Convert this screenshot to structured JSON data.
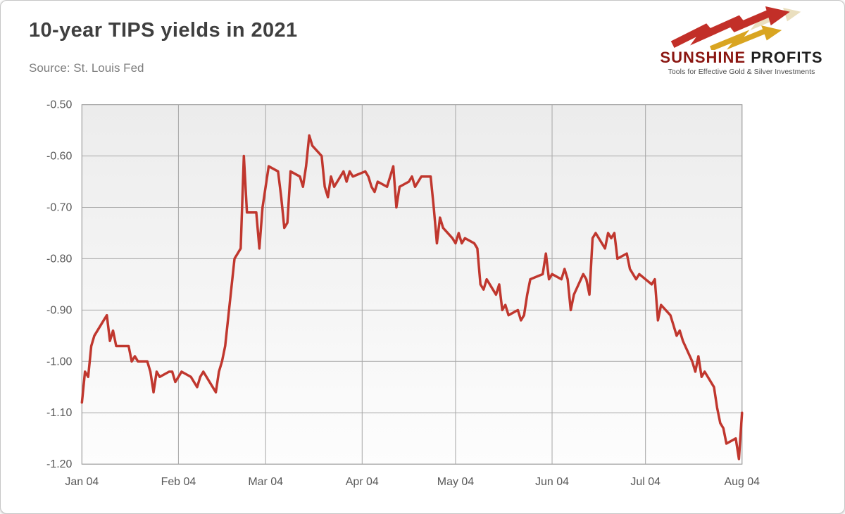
{
  "card": {
    "title": "10-year TIPS yields in 2021",
    "source": "Source: St. Louis Fed"
  },
  "logo": {
    "name_primary": "SUNSHINE",
    "name_secondary": "PROFITS",
    "tagline": "Tools for Effective Gold & Silver Investments",
    "colors": {
      "primary": "#8B1712",
      "secondary": "#1F1F1F",
      "arrow_red": "#C22F28",
      "arrow_gold": "#D9A521",
      "arrow_pale": "#EADFBF"
    }
  },
  "chart_data": {
    "type": "line",
    "title": "10-year TIPS yields in 2021",
    "series_name": "10-year TIPS yield (%)",
    "line_color": "#C0372E",
    "grid_color": "#A6A6A6",
    "grid": true,
    "legend": "none",
    "xlabel": "",
    "ylabel": "",
    "ylim": [
      -1.2,
      -0.5
    ],
    "x_range": [
      "2021-01-04",
      "2021-08-04"
    ],
    "y_ticks": [
      -0.5,
      -0.6,
      -0.7,
      -0.8,
      -0.9,
      -1.0,
      -1.1,
      -1.2
    ],
    "y_tick_labels": [
      "-0.50",
      "-0.60",
      "-0.70",
      "-0.80",
      "-0.90",
      "-1.00",
      "-1.10",
      "-1.20"
    ],
    "x_tick_dates": [
      "2021-01-04",
      "2021-02-04",
      "2021-03-04",
      "2021-04-04",
      "2021-05-04",
      "2021-06-04",
      "2021-07-04",
      "2021-08-04"
    ],
    "x_tick_labels": [
      "Jan 04",
      "Feb 04",
      "Mar 04",
      "Apr 04",
      "May 04",
      "Jun 04",
      "Jul 04",
      "Aug 04"
    ],
    "points": [
      [
        "2021-01-04",
        -1.08
      ],
      [
        "2021-01-05",
        -1.02
      ],
      [
        "2021-01-06",
        -1.03
      ],
      [
        "2021-01-07",
        -0.97
      ],
      [
        "2021-01-08",
        -0.95
      ],
      [
        "2021-01-11",
        -0.92
      ],
      [
        "2021-01-12",
        -0.91
      ],
      [
        "2021-01-13",
        -0.96
      ],
      [
        "2021-01-14",
        -0.94
      ],
      [
        "2021-01-15",
        -0.97
      ],
      [
        "2021-01-19",
        -0.97
      ],
      [
        "2021-01-20",
        -1.0
      ],
      [
        "2021-01-21",
        -0.99
      ],
      [
        "2021-01-22",
        -1.0
      ],
      [
        "2021-01-25",
        -1.0
      ],
      [
        "2021-01-26",
        -1.02
      ],
      [
        "2021-01-27",
        -1.06
      ],
      [
        "2021-01-28",
        -1.02
      ],
      [
        "2021-01-29",
        -1.03
      ],
      [
        "2021-02-01",
        -1.02
      ],
      [
        "2021-02-02",
        -1.02
      ],
      [
        "2021-02-03",
        -1.04
      ],
      [
        "2021-02-04",
        -1.03
      ],
      [
        "2021-02-05",
        -1.02
      ],
      [
        "2021-02-08",
        -1.03
      ],
      [
        "2021-02-09",
        -1.04
      ],
      [
        "2021-02-10",
        -1.05
      ],
      [
        "2021-02-11",
        -1.03
      ],
      [
        "2021-02-12",
        -1.02
      ],
      [
        "2021-02-16",
        -1.06
      ],
      [
        "2021-02-17",
        -1.02
      ],
      [
        "2021-02-18",
        -1.0
      ],
      [
        "2021-02-19",
        -0.97
      ],
      [
        "2021-02-22",
        -0.8
      ],
      [
        "2021-02-23",
        -0.79
      ],
      [
        "2021-02-24",
        -0.78
      ],
      [
        "2021-02-25",
        -0.6
      ],
      [
        "2021-02-26",
        -0.71
      ],
      [
        "2021-03-01",
        -0.71
      ],
      [
        "2021-03-02",
        -0.78
      ],
      [
        "2021-03-03",
        -0.7
      ],
      [
        "2021-03-04",
        -0.66
      ],
      [
        "2021-03-05",
        -0.62
      ],
      [
        "2021-03-08",
        -0.63
      ],
      [
        "2021-03-09",
        -0.68
      ],
      [
        "2021-03-10",
        -0.74
      ],
      [
        "2021-03-11",
        -0.73
      ],
      [
        "2021-03-12",
        -0.63
      ],
      [
        "2021-03-15",
        -0.64
      ],
      [
        "2021-03-16",
        -0.66
      ],
      [
        "2021-03-17",
        -0.62
      ],
      [
        "2021-03-18",
        -0.56
      ],
      [
        "2021-03-19",
        -0.58
      ],
      [
        "2021-03-22",
        -0.6
      ],
      [
        "2021-03-23",
        -0.66
      ],
      [
        "2021-03-24",
        -0.68
      ],
      [
        "2021-03-25",
        -0.64
      ],
      [
        "2021-03-26",
        -0.66
      ],
      [
        "2021-03-29",
        -0.63
      ],
      [
        "2021-03-30",
        -0.65
      ],
      [
        "2021-03-31",
        -0.63
      ],
      [
        "2021-04-01",
        -0.64
      ],
      [
        "2021-04-05",
        -0.63
      ],
      [
        "2021-04-06",
        -0.64
      ],
      [
        "2021-04-07",
        -0.66
      ],
      [
        "2021-04-08",
        -0.67
      ],
      [
        "2021-04-09",
        -0.65
      ],
      [
        "2021-04-12",
        -0.66
      ],
      [
        "2021-04-13",
        -0.64
      ],
      [
        "2021-04-14",
        -0.62
      ],
      [
        "2021-04-15",
        -0.7
      ],
      [
        "2021-04-16",
        -0.66
      ],
      [
        "2021-04-19",
        -0.65
      ],
      [
        "2021-04-20",
        -0.64
      ],
      [
        "2021-04-21",
        -0.66
      ],
      [
        "2021-04-22",
        -0.65
      ],
      [
        "2021-04-23",
        -0.64
      ],
      [
        "2021-04-26",
        -0.64
      ],
      [
        "2021-04-27",
        -0.7
      ],
      [
        "2021-04-28",
        -0.77
      ],
      [
        "2021-04-29",
        -0.72
      ],
      [
        "2021-04-30",
        -0.74
      ],
      [
        "2021-05-03",
        -0.76
      ],
      [
        "2021-05-04",
        -0.77
      ],
      [
        "2021-05-05",
        -0.75
      ],
      [
        "2021-05-06",
        -0.77
      ],
      [
        "2021-05-07",
        -0.76
      ],
      [
        "2021-05-10",
        -0.77
      ],
      [
        "2021-05-11",
        -0.78
      ],
      [
        "2021-05-12",
        -0.85
      ],
      [
        "2021-05-13",
        -0.86
      ],
      [
        "2021-05-14",
        -0.84
      ],
      [
        "2021-05-17",
        -0.87
      ],
      [
        "2021-05-18",
        -0.85
      ],
      [
        "2021-05-19",
        -0.9
      ],
      [
        "2021-05-20",
        -0.89
      ],
      [
        "2021-05-21",
        -0.91
      ],
      [
        "2021-05-24",
        -0.9
      ],
      [
        "2021-05-25",
        -0.92
      ],
      [
        "2021-05-26",
        -0.91
      ],
      [
        "2021-05-27",
        -0.87
      ],
      [
        "2021-05-28",
        -0.84
      ],
      [
        "2021-06-01",
        -0.83
      ],
      [
        "2021-06-02",
        -0.79
      ],
      [
        "2021-06-03",
        -0.84
      ],
      [
        "2021-06-04",
        -0.83
      ],
      [
        "2021-06-07",
        -0.84
      ],
      [
        "2021-06-08",
        -0.82
      ],
      [
        "2021-06-09",
        -0.84
      ],
      [
        "2021-06-10",
        -0.9
      ],
      [
        "2021-06-11",
        -0.87
      ],
      [
        "2021-06-14",
        -0.83
      ],
      [
        "2021-06-15",
        -0.84
      ],
      [
        "2021-06-16",
        -0.87
      ],
      [
        "2021-06-17",
        -0.76
      ],
      [
        "2021-06-18",
        -0.75
      ],
      [
        "2021-06-21",
        -0.78
      ],
      [
        "2021-06-22",
        -0.75
      ],
      [
        "2021-06-23",
        -0.76
      ],
      [
        "2021-06-24",
        -0.75
      ],
      [
        "2021-06-25",
        -0.8
      ],
      [
        "2021-06-28",
        -0.79
      ],
      [
        "2021-06-29",
        -0.82
      ],
      [
        "2021-06-30",
        -0.83
      ],
      [
        "2021-07-01",
        -0.84
      ],
      [
        "2021-07-02",
        -0.83
      ],
      [
        "2021-07-06",
        -0.85
      ],
      [
        "2021-07-07",
        -0.84
      ],
      [
        "2021-07-08",
        -0.92
      ],
      [
        "2021-07-09",
        -0.89
      ],
      [
        "2021-07-12",
        -0.91
      ],
      [
        "2021-07-13",
        -0.93
      ],
      [
        "2021-07-14",
        -0.95
      ],
      [
        "2021-07-15",
        -0.94
      ],
      [
        "2021-07-16",
        -0.96
      ],
      [
        "2021-07-19",
        -1.0
      ],
      [
        "2021-07-20",
        -1.02
      ],
      [
        "2021-07-21",
        -0.99
      ],
      [
        "2021-07-22",
        -1.03
      ],
      [
        "2021-07-23",
        -1.02
      ],
      [
        "2021-07-26",
        -1.05
      ],
      [
        "2021-07-27",
        -1.09
      ],
      [
        "2021-07-28",
        -1.12
      ],
      [
        "2021-07-29",
        -1.13
      ],
      [
        "2021-07-30",
        -1.16
      ],
      [
        "2021-08-02",
        -1.15
      ],
      [
        "2021-08-03",
        -1.19
      ],
      [
        "2021-08-04",
        -1.1
      ]
    ]
  }
}
